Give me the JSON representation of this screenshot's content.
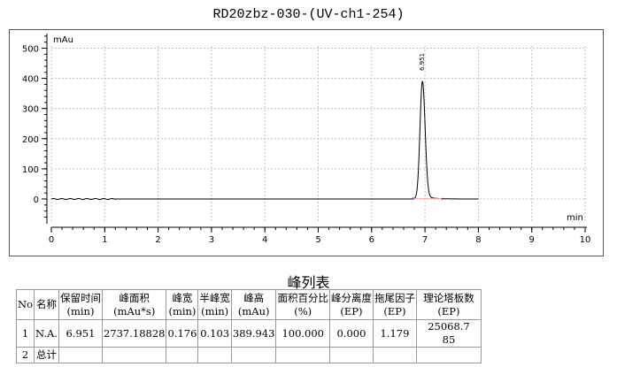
{
  "chart_data": {
    "type": "line",
    "title": "RD20zbz-030-(UV-ch1-254)",
    "xlabel": "min",
    "ylabel": "mAu",
    "xlim": [
      0,
      10
    ],
    "ylim": [
      -80,
      540
    ],
    "xticks": [
      0,
      1,
      2,
      3,
      4,
      5,
      6,
      7,
      8,
      9,
      10
    ],
    "yticks": [
      0,
      100,
      200,
      300,
      400,
      500
    ],
    "grid": true,
    "data_end_x": 8,
    "peaks": [
      {
        "label": "6.951",
        "rt": 6.951,
        "height": 389.943,
        "start": 6.78,
        "end": 7.32
      }
    ],
    "line_color": "#000000",
    "grid_color": "#c0c0c0"
  },
  "table": {
    "title": "峰列表",
    "headers": [
      [
        "No",
        ""
      ],
      [
        "名称",
        ""
      ],
      [
        "保留时间",
        "(min)"
      ],
      [
        "峰面积",
        "(mAu*s)"
      ],
      [
        "峰宽",
        "(min)"
      ],
      [
        "半峰宽",
        "(min)"
      ],
      [
        "峰高",
        "(mAu)"
      ],
      [
        "面积百分比",
        "(%)"
      ],
      [
        "峰分离度",
        "(EP)"
      ],
      [
        "拖尾因子",
        "(EP)"
      ],
      [
        "理论塔板数",
        "(EP)"
      ]
    ],
    "rows": [
      [
        "1",
        "N.A.",
        "6.951",
        "2737.18828",
        "0.176",
        "0.103",
        "389.943",
        "100.000",
        "0.000",
        "1.179",
        "25068.785"
      ],
      [
        "2",
        "总计",
        "",
        "",
        "",
        "",
        "",
        "",
        "",
        "",
        ""
      ]
    ]
  }
}
